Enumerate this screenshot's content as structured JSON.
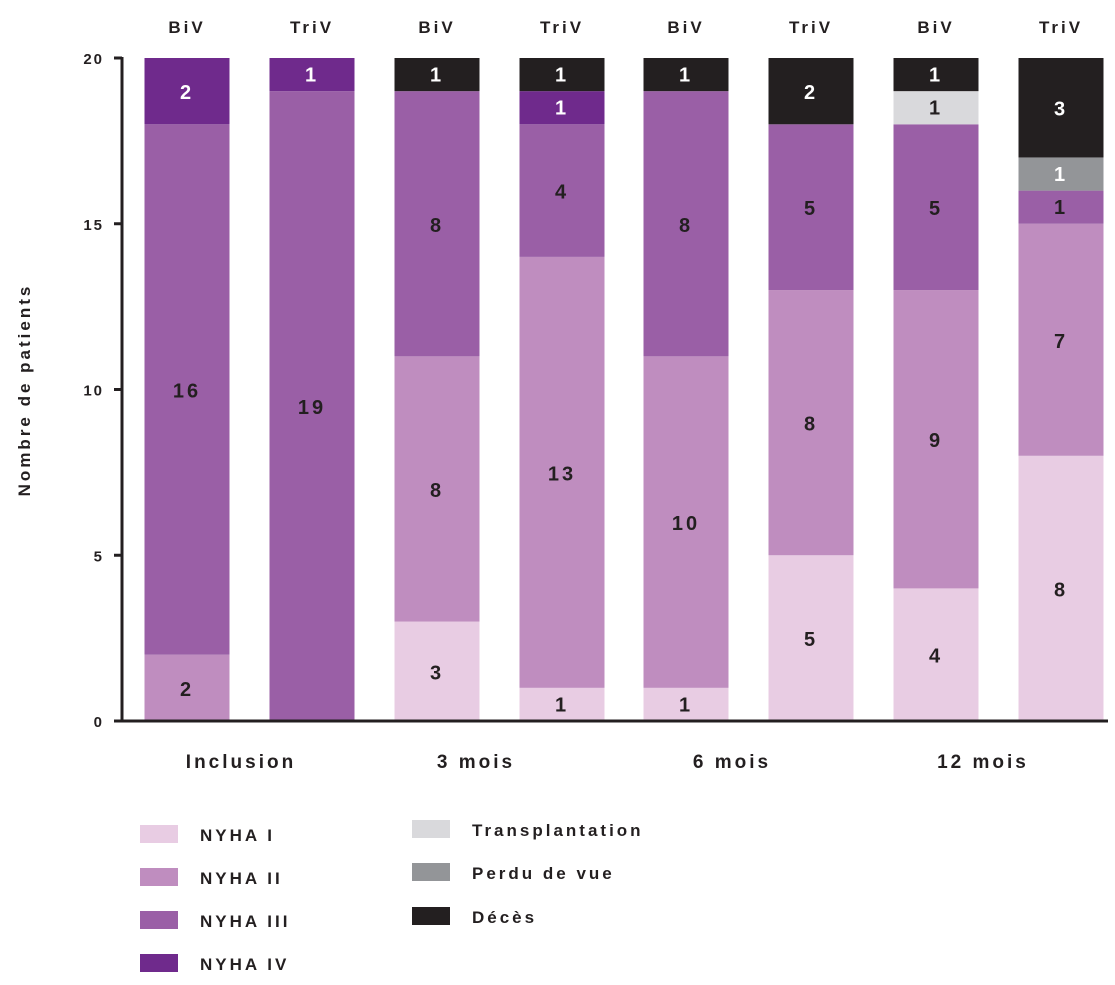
{
  "chart_data": {
    "type": "bar",
    "stacked": true,
    "ylabel": "Nombre de patients",
    "ylim": [
      0,
      20
    ],
    "yticks": [
      "0",
      "5",
      "10",
      "15",
      "20"
    ],
    "groups": [
      "Inclusion",
      "3 mois",
      "6 mois",
      "12 mois"
    ],
    "bar_labels": [
      "BiV",
      "TriV",
      "BiV",
      "TriV",
      "BiV",
      "TriV",
      "BiV",
      "TriV"
    ],
    "series": [
      {
        "name": "NYHA I",
        "color": "#e8cce3",
        "values": [
          0,
          0,
          3,
          1,
          1,
          5,
          4,
          8
        ],
        "labels": [
          "",
          "",
          "3",
          "1",
          "1",
          "5",
          "4",
          "8"
        ]
      },
      {
        "name": "NYHA II",
        "color": "#bf8dbf",
        "values": [
          2,
          0,
          8,
          13,
          10,
          8,
          9,
          7
        ],
        "labels": [
          "2",
          "",
          "8",
          "13",
          "10",
          "8",
          "9",
          "7"
        ]
      },
      {
        "name": "NYHA III",
        "color": "#9a5fa6",
        "values": [
          16,
          19,
          8,
          4,
          8,
          5,
          5,
          1
        ],
        "labels": [
          "16",
          "19",
          "8",
          "4",
          "8",
          "5",
          "5",
          "1"
        ]
      },
      {
        "name": "NYHA IV",
        "color": "#6f2a8c",
        "values": [
          2,
          1,
          0,
          1,
          0,
          0,
          0,
          0
        ],
        "labels": [
          "2",
          "1",
          "",
          "1",
          "",
          "",
          "",
          ""
        ]
      },
      {
        "name": "Transplantation",
        "color": "#d9d9dc",
        "values": [
          0,
          0,
          0,
          0,
          0,
          0,
          1,
          0
        ],
        "labels": [
          "",
          "",
          "",
          "",
          "",
          "",
          "1",
          ""
        ]
      },
      {
        "name": "Perdu de vue",
        "color": "#939598",
        "values": [
          0,
          0,
          0,
          0,
          0,
          0,
          0,
          1
        ],
        "labels": [
          "",
          "",
          "",
          "",
          "",
          "",
          "",
          "1"
        ]
      },
      {
        "name": "Décès",
        "color": "#231f20",
        "values": [
          0,
          0,
          1,
          1,
          1,
          2,
          1,
          3
        ],
        "labels": [
          "",
          "",
          "1",
          "1",
          "1",
          "2",
          "1",
          "3"
        ]
      }
    ],
    "legend": {
      "placement": "bottom",
      "items": [
        "NYHA I",
        "NYHA II",
        "NYHA III",
        "NYHA IV",
        "Transplantation",
        "Perdu de vue",
        "Décès"
      ]
    }
  }
}
